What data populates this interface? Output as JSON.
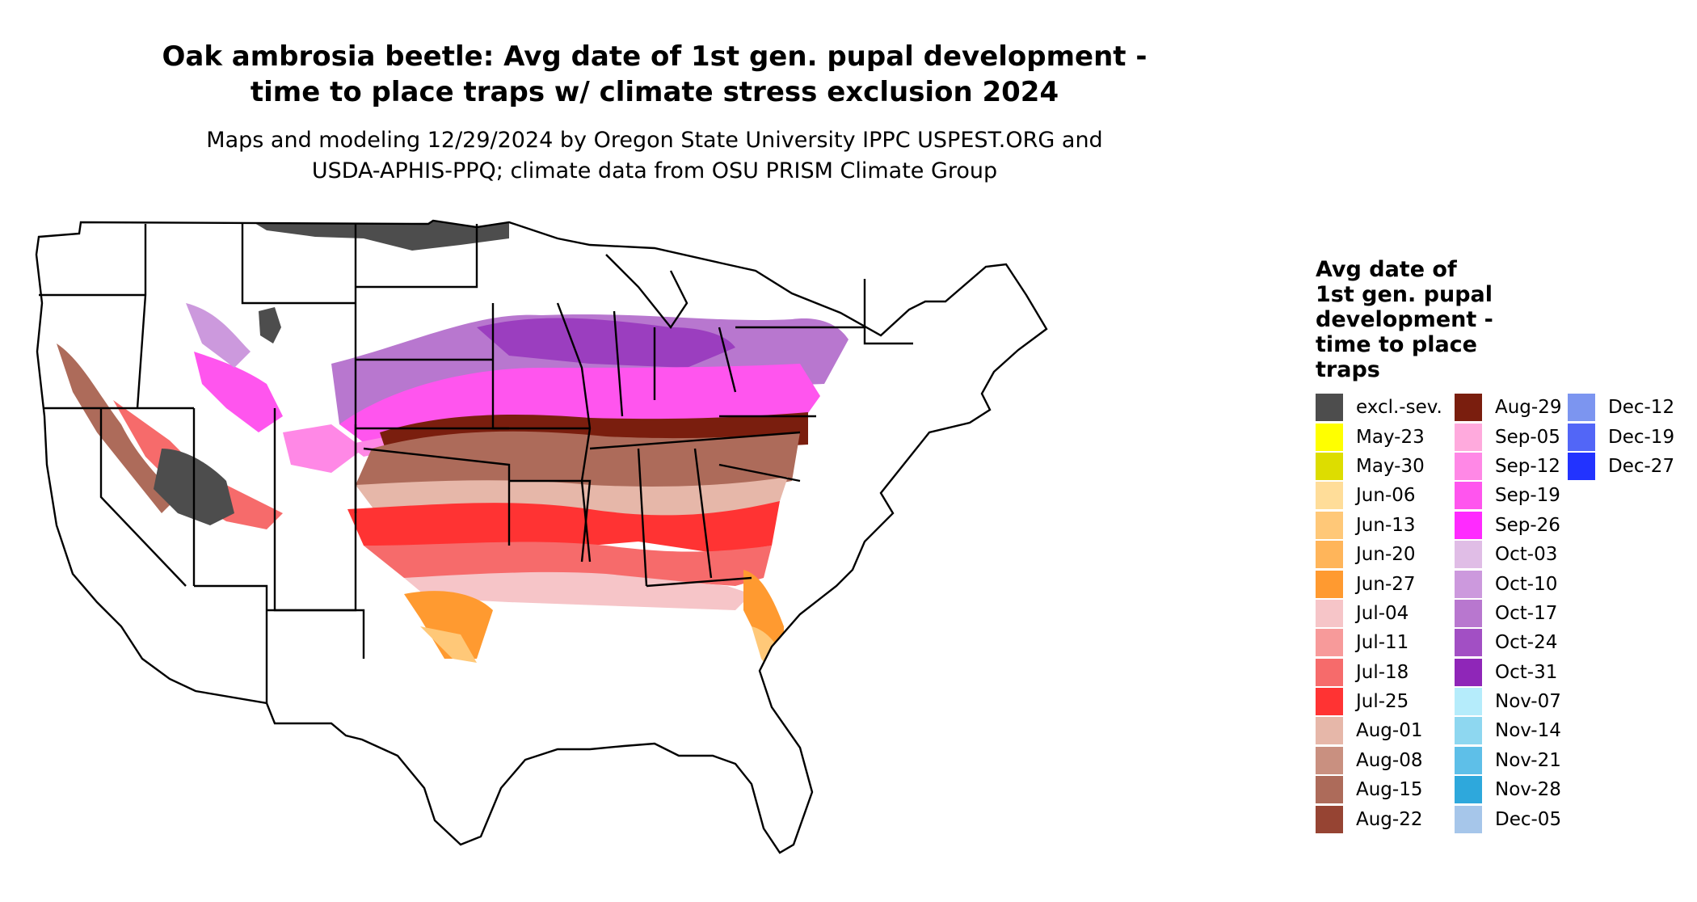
{
  "title": {
    "line1": "Oak ambrosia beetle: Avg date of 1st gen. pupal development -",
    "line2": "time to place traps w/ climate stress exclusion 2024"
  },
  "subtitle": {
    "line1": "Maps and modeling 12/29/2024 by Oregon State University IPPC USPEST.ORG and",
    "line2": "USDA-APHIS-PPQ; climate data from OSU PRISM Climate Group"
  },
  "map": {
    "region": "Contiguous United States",
    "state_border_color": "#000000",
    "background_color": "#ffffff"
  },
  "legend": {
    "title_lines": [
      "Avg date of",
      "1st gen. pupal",
      "development -",
      "time to place",
      "traps"
    ],
    "columns": [
      [
        {
          "label": "excl.-sev.",
          "color": "#4d4d4d"
        },
        {
          "label": "May-23",
          "color": "#ffff00"
        },
        {
          "label": "May-30",
          "color": "#dddd00"
        },
        {
          "label": "Jun-06",
          "color": "#ffdd99"
        },
        {
          "label": "Jun-13",
          "color": "#ffc878"
        },
        {
          "label": "Jun-20",
          "color": "#ffb55a"
        },
        {
          "label": "Jun-27",
          "color": "#ff9a30"
        },
        {
          "label": "Jul-04",
          "color": "#f6c5c8"
        },
        {
          "label": "Jul-11",
          "color": "#f79a9a"
        },
        {
          "label": "Jul-18",
          "color": "#f66b6b"
        },
        {
          "label": "Jul-25",
          "color": "#ff3333"
        },
        {
          "label": "Aug-01",
          "color": "#e6b7a9"
        },
        {
          "label": "Aug-08",
          "color": "#c99080"
        },
        {
          "label": "Aug-15",
          "color": "#ad6b5a"
        },
        {
          "label": "Aug-22",
          "color": "#964433"
        }
      ],
      [
        {
          "label": "Aug-29",
          "color": "#7a1e0e"
        },
        {
          "label": "Sep-05",
          "color": "#ffaadd"
        },
        {
          "label": "Sep-12",
          "color": "#ff88e6"
        },
        {
          "label": "Sep-19",
          "color": "#ff55ee"
        },
        {
          "label": "Sep-26",
          "color": "#ff2aff"
        },
        {
          "label": "Oct-03",
          "color": "#e0bde6"
        },
        {
          "label": "Oct-10",
          "color": "#cc99dd"
        },
        {
          "label": "Oct-17",
          "color": "#b877cf"
        },
        {
          "label": "Oct-24",
          "color": "#a24fc4"
        },
        {
          "label": "Oct-31",
          "color": "#8f26b8"
        },
        {
          "label": "Nov-07",
          "color": "#b5ecfb"
        },
        {
          "label": "Nov-14",
          "color": "#8ed7f0"
        },
        {
          "label": "Nov-21",
          "color": "#5ebfe8"
        },
        {
          "label": "Nov-28",
          "color": "#2ea8dc"
        },
        {
          "label": "Dec-05",
          "color": "#a6c6ea"
        }
      ],
      [
        {
          "label": "Dec-12",
          "color": "#7c95f0"
        },
        {
          "label": "Dec-19",
          "color": "#5266f7"
        },
        {
          "label": "Dec-27",
          "color": "#2233ff"
        }
      ]
    ]
  }
}
